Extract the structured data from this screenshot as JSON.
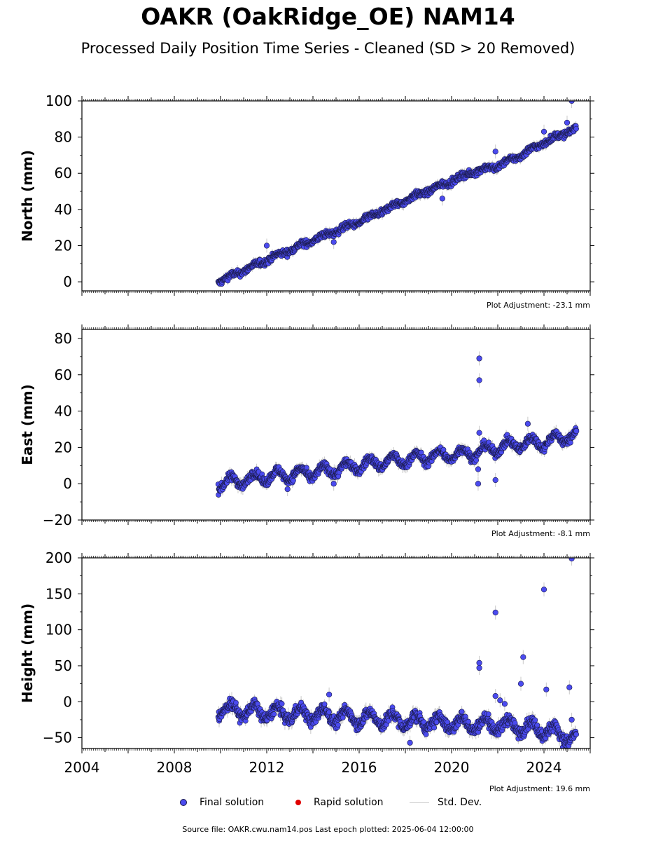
{
  "title": "OAKR (OakRidge_OE) NAM14",
  "subtitle": "Processed Daily Position Time Series - Cleaned (SD > 20 Removed)",
  "legend": {
    "final": "Final solution",
    "rapid": "Rapid solution",
    "std": "Std. Dev."
  },
  "footer": "Source file: OAKR.cwu.nam14.pos  Last epoch plotted: 2025-06-04 12:00:00",
  "colors": {
    "final": "#4b4bef",
    "rapid": "#e00000",
    "std": "#c8c8c8",
    "edge": "#1a1a4a"
  },
  "chart_data": [
    {
      "type": "scatter",
      "ylabel": "North (mm)",
      "adjustment": "Plot Adjustment: -23.1 mm",
      "xlim": [
        2004.0,
        2026.0
      ],
      "ylim": [
        -5,
        100
      ],
      "yticks": [
        0,
        20,
        40,
        60,
        80,
        100
      ],
      "series": [
        {
          "name": "Final solution",
          "trend": [
            [
              2009.9,
              0
            ],
            [
              2012.0,
              12
            ],
            [
              2014.0,
              23
            ],
            [
              2016.0,
              33
            ],
            [
              2018.0,
              45
            ],
            [
              2019.5,
              53
            ],
            [
              2021.0,
              61
            ],
            [
              2022.0,
              64
            ],
            [
              2023.0,
              70
            ],
            [
              2024.0,
              77
            ],
            [
              2025.4,
              85
            ]
          ],
          "outliers": [
            [
              2012.0,
              20
            ],
            [
              2014.9,
              22
            ],
            [
              2019.6,
              46
            ],
            [
              2021.9,
              72
            ],
            [
              2024.0,
              83
            ],
            [
              2025.0,
              88
            ],
            [
              2025.2,
              100
            ]
          ]
        }
      ]
    },
    {
      "type": "scatter",
      "ylabel": "East (mm)",
      "adjustment": "Plot Adjustment: -8.1 mm",
      "xlim": [
        2004.0,
        2026.0
      ],
      "ylim": [
        -20,
        85
      ],
      "yticks": [
        -20,
        0,
        20,
        40,
        60,
        80
      ],
      "series": [
        {
          "name": "Final solution",
          "trend": [
            [
              2009.9,
              0
            ],
            [
              2011.0,
              2
            ],
            [
              2012.0,
              4
            ],
            [
              2013.0,
              5
            ],
            [
              2014.0,
              6
            ],
            [
              2015.0,
              8
            ],
            [
              2016.0,
              10
            ],
            [
              2017.0,
              12
            ],
            [
              2018.0,
              13
            ],
            [
              2019.0,
              15
            ],
            [
              2020.0,
              16
            ],
            [
              2021.0,
              17
            ],
            [
              2022.0,
              20
            ],
            [
              2023.0,
              22
            ],
            [
              2024.0,
              23
            ],
            [
              2025.4,
              27
            ]
          ],
          "outliers": [
            [
              2021.2,
              69
            ],
            [
              2021.2,
              57
            ],
            [
              2021.2,
              28
            ],
            [
              2021.15,
              8
            ],
            [
              2021.15,
              0
            ],
            [
              2021.9,
              2
            ],
            [
              2014.9,
              0
            ],
            [
              2012.9,
              -3
            ],
            [
              2023.3,
              33
            ],
            [
              2025.4,
              29
            ]
          ]
        }
      ]
    },
    {
      "type": "scatter",
      "ylabel": "Height (mm)",
      "adjustment": "Plot Adjustment: 19.6 mm",
      "xlim": [
        2004.0,
        2026.0
      ],
      "ylim": [
        -65,
        200
      ],
      "yticks": [
        -50,
        0,
        50,
        100,
        150,
        200
      ],
      "xticks": [
        "2004",
        "2008",
        "2012",
        "2016",
        "2020",
        "2024"
      ],
      "series": [
        {
          "name": "Final solution",
          "trend": [
            [
              2009.9,
              -10
            ],
            [
              2012.0,
              -15
            ],
            [
              2014.0,
              -18
            ],
            [
              2016.0,
              -22
            ],
            [
              2018.0,
              -27
            ],
            [
              2020.0,
              -30
            ],
            [
              2022.0,
              -32
            ],
            [
              2024.0,
              -38
            ],
            [
              2025.4,
              -52
            ]
          ],
          "outliers": [
            [
              2021.2,
              54
            ],
            [
              2021.2,
              47
            ],
            [
              2021.9,
              124
            ],
            [
              2021.9,
              8
            ],
            [
              2022.1,
              2
            ],
            [
              2022.3,
              -3
            ],
            [
              2023.1,
              62
            ],
            [
              2023.0,
              25
            ],
            [
              2024.0,
              156
            ],
            [
              2024.1,
              17
            ],
            [
              2025.1,
              20
            ],
            [
              2025.2,
              199
            ],
            [
              2025.2,
              -25
            ],
            [
              2018.2,
              -57
            ],
            [
              2014.7,
              10
            ]
          ]
        }
      ]
    }
  ]
}
